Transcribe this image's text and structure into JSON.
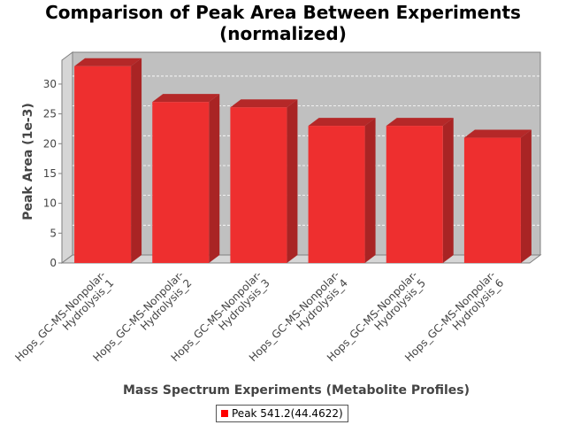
{
  "chart_data": {
    "type": "bar",
    "title": "Comparison of Peak Area Between Experiments",
    "subtitle": "(normalized)",
    "xlabel": "Mass Spectrum Experiments (Metabolite Profiles)",
    "ylabel": "Peak Area (1e-3)",
    "ylim": [
      0,
      34
    ],
    "yticks": [
      0,
      5,
      10,
      15,
      20,
      25,
      30
    ],
    "grid": true,
    "legend_position": "bottom",
    "categories": [
      "Hops_GC-MS-Nonpolar-Hydrolysis_1",
      "Hops_GC-MS-Nonpolar-Hydrolysis_2",
      "Hops_GC-MS-Nonpolar-Hydrolysis_3",
      "Hops_GC-MS-Nonpolar-Hydrolysis_4",
      "Hops_GC-MS-Nonpolar-Hydrolysis_5",
      "Hops_GC-MS-Nonpolar-Hydrolysis_6"
    ],
    "category_lines": [
      [
        "Hops_GC-MS-Nonpolar-",
        "Hydrolysis_1"
      ],
      [
        "Hops_GC-MS-Nonpolar-",
        "Hydrolysis_2"
      ],
      [
        "Hops_GC-MS-Nonpolar-",
        "Hydrolysis_3"
      ],
      [
        "Hops_GC-MS-Nonpolar-",
        "Hydrolysis_4"
      ],
      [
        "Hops_GC-MS-Nonpolar-",
        "Hydrolysis_5"
      ],
      [
        "Hops_GC-MS-Nonpolar-",
        "Hydrolysis_6"
      ]
    ],
    "series": [
      {
        "name": "Peak 541.2(44.4622)",
        "color": "#ee2f2f",
        "values": [
          33.0,
          27.0,
          26.1,
          23.0,
          23.0,
          21.0
        ]
      }
    ]
  }
}
